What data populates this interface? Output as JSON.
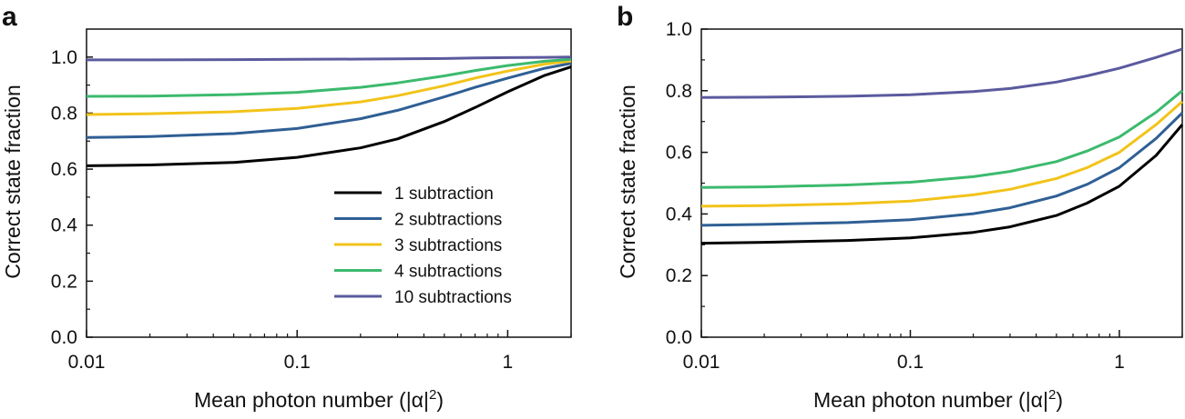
{
  "figure": {
    "panels": [
      "a",
      "b"
    ]
  },
  "chart_data": [
    {
      "panel": "a",
      "type": "line",
      "title": "",
      "xlabel_main": "Mean photon number (|α|",
      "xlabel_sup": "2",
      "xlabel_close": ")",
      "ylabel": "Correct state fraction",
      "xscale": "log",
      "xlim": [
        0.01,
        2
      ],
      "ylim": [
        0,
        1.1
      ],
      "xticks": [
        0.01,
        0.1,
        1
      ],
      "xtick_labels": [
        "0.01",
        "0.1",
        "1"
      ],
      "yticks": [
        0,
        0.2,
        0.4,
        0.6,
        0.8,
        1.0
      ],
      "ytick_labels": [
        "0.0",
        "0.2",
        "0.4",
        "0.6",
        "0.8",
        "1.0"
      ],
      "legend_placement": "lower-right",
      "x": [
        0.01,
        0.02,
        0.05,
        0.1,
        0.2,
        0.3,
        0.5,
        0.7,
        1.0,
        1.5,
        2.0
      ],
      "series": [
        {
          "name": "1 subtraction",
          "color": "#000000",
          "values": [
            0.612,
            0.615,
            0.624,
            0.642,
            0.676,
            0.708,
            0.77,
            0.82,
            0.876,
            0.935,
            0.965
          ]
        },
        {
          "name": "2 subtractions",
          "color": "#2f5f94",
          "values": [
            0.713,
            0.716,
            0.727,
            0.745,
            0.78,
            0.81,
            0.858,
            0.892,
            0.925,
            0.96,
            0.978
          ]
        },
        {
          "name": "3 subtractions",
          "color": "#f2c31a",
          "values": [
            0.795,
            0.798,
            0.805,
            0.817,
            0.84,
            0.862,
            0.898,
            0.925,
            0.95,
            0.975,
            0.986
          ]
        },
        {
          "name": "4 subtractions",
          "color": "#3cba6e",
          "values": [
            0.86,
            0.861,
            0.866,
            0.874,
            0.892,
            0.908,
            0.933,
            0.952,
            0.97,
            0.985,
            0.992
          ]
        },
        {
          "name": "10 subtractions",
          "color": "#5b5a9e",
          "values": [
            0.99,
            0.99,
            0.991,
            0.992,
            0.993,
            0.994,
            0.995,
            0.997,
            0.998,
            0.999,
            1.0
          ]
        }
      ]
    },
    {
      "panel": "b",
      "type": "line",
      "title": "",
      "xlabel_main": "Mean photon number (|α|",
      "xlabel_sup": "2",
      "xlabel_close": ")",
      "ylabel": "Correct state fraction",
      "xscale": "log",
      "xlim": [
        0.01,
        2
      ],
      "ylim": [
        0,
        1.0
      ],
      "xticks": [
        0.01,
        0.1,
        1
      ],
      "xtick_labels": [
        "0.01",
        "0.1",
        "1"
      ],
      "yticks": [
        0,
        0.2,
        0.4,
        0.6,
        0.8,
        1.0
      ],
      "ytick_labels": [
        "0.0",
        "0.2",
        "0.4",
        "0.6",
        "0.8",
        "1.0"
      ],
      "x": [
        0.01,
        0.02,
        0.05,
        0.1,
        0.2,
        0.3,
        0.5,
        0.7,
        1.0,
        1.5,
        2.0
      ],
      "series": [
        {
          "name": "1 subtraction",
          "color": "#000000",
          "values": [
            0.305,
            0.308,
            0.314,
            0.322,
            0.34,
            0.358,
            0.395,
            0.435,
            0.49,
            0.59,
            0.69
          ]
        },
        {
          "name": "2 subtractions",
          "color": "#2f5f94",
          "values": [
            0.363,
            0.366,
            0.372,
            0.381,
            0.401,
            0.42,
            0.458,
            0.496,
            0.55,
            0.645,
            0.728
          ]
        },
        {
          "name": "3 subtractions",
          "color": "#f2c31a",
          "values": [
            0.425,
            0.427,
            0.433,
            0.442,
            0.462,
            0.48,
            0.515,
            0.55,
            0.6,
            0.69,
            0.765
          ]
        },
        {
          "name": "4 subtractions",
          "color": "#3cba6e",
          "values": [
            0.486,
            0.488,
            0.494,
            0.503,
            0.521,
            0.538,
            0.57,
            0.604,
            0.65,
            0.73,
            0.8
          ]
        },
        {
          "name": "10 subtractions",
          "color": "#5b5a9e",
          "values": [
            0.778,
            0.779,
            0.782,
            0.787,
            0.797,
            0.807,
            0.828,
            0.848,
            0.873,
            0.908,
            0.935
          ]
        }
      ]
    }
  ]
}
